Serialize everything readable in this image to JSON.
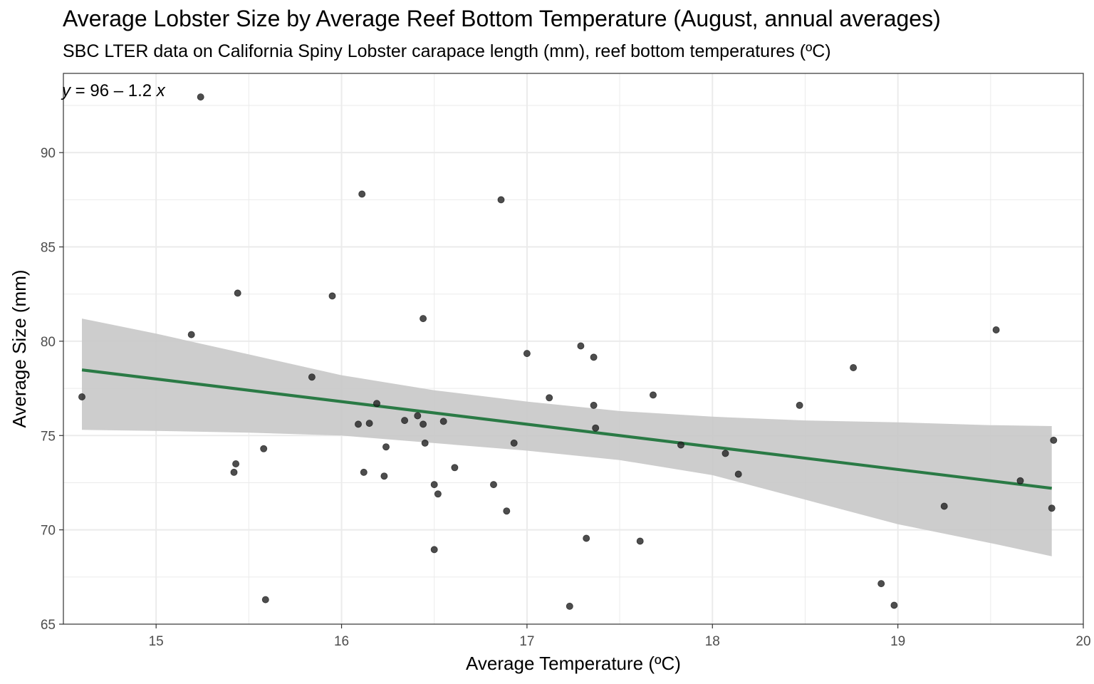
{
  "chart_data": {
    "type": "scatter",
    "title": "Average Lobster Size by Average Reef Bottom Temperature (August, annual averages)",
    "subtitle": "SBC LTER data on California Spiny Lobster carapace length (mm), reef bottom temperatures (ºC)",
    "xlabel": "Average Temperature (ºC)",
    "ylabel": "Average Size (mm)",
    "xlim": [
      14.5,
      20.0
    ],
    "ylim": [
      65.0,
      94.2
    ],
    "x_ticks": [
      "15",
      "16",
      "17",
      "18",
      "19",
      "20"
    ],
    "y_ticks": [
      "65",
      "70",
      "75",
      "80",
      "85",
      "90"
    ],
    "grid": true,
    "annotation": {
      "y_var": "y",
      "eq_mid": " = 96 – 1.2 ",
      "x_var": "x"
    },
    "colors": {
      "line": "#2a7a45",
      "ribbon": "#c8c8c8",
      "points": "#262626",
      "grid": "#ebebeb"
    },
    "fit": {
      "intercept": 96,
      "slope": -1.2,
      "x_range": [
        14.6,
        19.83
      ]
    },
    "ribbon": {
      "x": [
        14.6,
        15.0,
        15.5,
        16.0,
        16.5,
        17.0,
        17.5,
        18.0,
        18.5,
        19.0,
        19.5,
        19.83
      ],
      "upper": [
        81.2,
        80.4,
        79.3,
        78.2,
        77.4,
        76.8,
        76.3,
        76.0,
        75.8,
        75.7,
        75.55,
        75.5
      ],
      "lower": [
        75.3,
        75.25,
        75.15,
        75.0,
        74.6,
        74.2,
        73.7,
        72.9,
        71.6,
        70.3,
        69.3,
        68.6
      ]
    },
    "series": [
      {
        "points": [
          [
            14.6,
            77.05
          ],
          [
            15.19,
            80.35
          ],
          [
            15.24,
            92.95
          ],
          [
            15.42,
            73.05
          ],
          [
            15.43,
            73.5
          ],
          [
            15.44,
            82.55
          ],
          [
            15.58,
            74.3
          ],
          [
            15.59,
            66.3
          ],
          [
            15.84,
            78.1
          ],
          [
            15.95,
            82.4
          ],
          [
            16.09,
            75.6
          ],
          [
            16.11,
            87.8
          ],
          [
            16.12,
            73.05
          ],
          [
            16.15,
            75.65
          ],
          [
            16.19,
            76.7
          ],
          [
            16.23,
            72.85
          ],
          [
            16.24,
            74.4
          ],
          [
            16.34,
            75.8
          ],
          [
            16.41,
            76.05
          ],
          [
            16.44,
            81.2
          ],
          [
            16.44,
            75.6
          ],
          [
            16.45,
            74.6
          ],
          [
            16.5,
            72.4
          ],
          [
            16.5,
            68.95
          ],
          [
            16.52,
            71.9
          ],
          [
            16.55,
            75.75
          ],
          [
            16.61,
            73.3
          ],
          [
            16.82,
            72.4
          ],
          [
            16.86,
            87.5
          ],
          [
            16.89,
            71.0
          ],
          [
            16.93,
            74.6
          ],
          [
            17.0,
            79.35
          ],
          [
            17.12,
            77.0
          ],
          [
            17.23,
            65.95
          ],
          [
            17.29,
            79.75
          ],
          [
            17.32,
            69.55
          ],
          [
            17.36,
            79.15
          ],
          [
            17.36,
            76.6
          ],
          [
            17.37,
            75.4
          ],
          [
            17.61,
            69.4
          ],
          [
            17.68,
            77.15
          ],
          [
            17.83,
            74.5
          ],
          [
            18.07,
            74.05
          ],
          [
            18.14,
            72.95
          ],
          [
            18.47,
            76.6
          ],
          [
            18.76,
            78.6
          ],
          [
            18.91,
            67.15
          ],
          [
            18.98,
            66.0
          ],
          [
            19.25,
            71.25
          ],
          [
            19.53,
            80.6
          ],
          [
            19.66,
            72.6
          ],
          [
            19.83,
            71.15
          ],
          [
            19.84,
            74.75
          ]
        ]
      }
    ]
  }
}
